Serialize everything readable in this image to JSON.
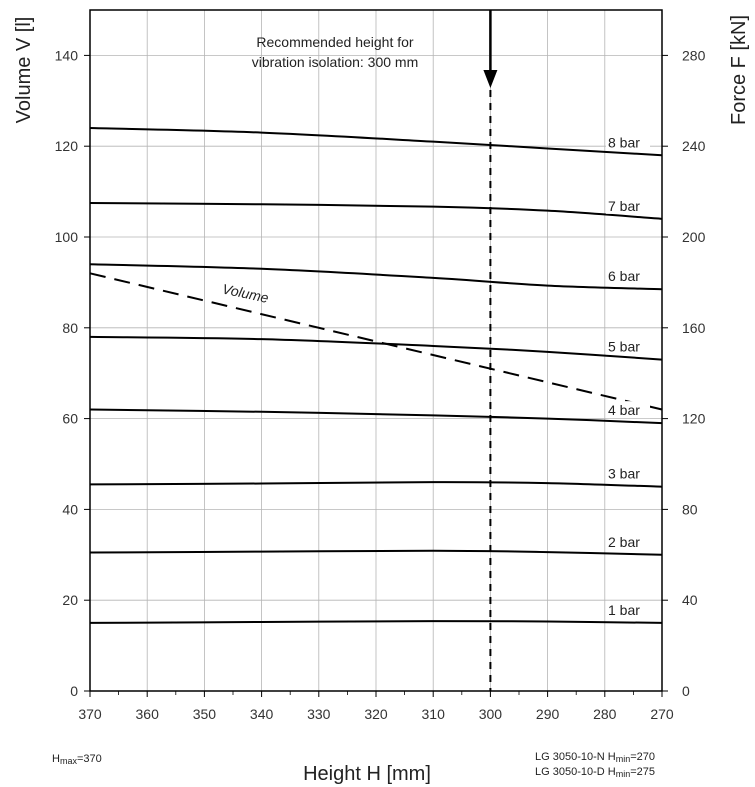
{
  "chart_data": {
    "type": "line",
    "x_label": "Height H [mm]",
    "y_label_left": "Volume V [l]",
    "y_label_right": "Force F [kN]",
    "x_range": [
      370,
      270
    ],
    "x_reversed": true,
    "x_ticks": [
      370,
      360,
      350,
      340,
      330,
      320,
      310,
      300,
      290,
      280,
      270
    ],
    "y_left_range": [
      0,
      150
    ],
    "y_left_ticks": [
      0,
      20,
      40,
      60,
      80,
      100,
      120,
      140
    ],
    "y_right_range": [
      0,
      300
    ],
    "y_right_ticks": [
      0,
      40,
      80,
      120,
      160,
      200,
      240,
      280
    ],
    "grid": true,
    "force_series": [
      {
        "name": "1 bar",
        "x": [
          370,
          340,
          310,
          290,
          270
        ],
        "y": [
          30,
          30.4,
          30.8,
          30.6,
          30
        ]
      },
      {
        "name": "2 bar",
        "x": [
          370,
          340,
          310,
          290,
          270
        ],
        "y": [
          61,
          61.4,
          61.8,
          61.2,
          60
        ]
      },
      {
        "name": "3 bar",
        "x": [
          370,
          340,
          310,
          290,
          270
        ],
        "y": [
          91,
          91.4,
          92,
          91.6,
          90
        ]
      },
      {
        "name": "4 bar",
        "x": [
          370,
          340,
          310,
          290,
          270
        ],
        "y": [
          124,
          123,
          121.4,
          120,
          118
        ]
      },
      {
        "name": "5 bar",
        "x": [
          370,
          340,
          310,
          290,
          270
        ],
        "y": [
          156,
          155,
          152,
          149.4,
          146
        ]
      },
      {
        "name": "6 bar",
        "x": [
          370,
          340,
          310,
          290,
          270
        ],
        "y": [
          188,
          186,
          182,
          178.6,
          177
        ]
      },
      {
        "name": "7 bar",
        "x": [
          370,
          340,
          310,
          290,
          270
        ],
        "y": [
          215,
          214.4,
          213.4,
          211.6,
          208
        ]
      },
      {
        "name": "8 bar",
        "x": [
          370,
          340,
          310,
          290,
          270
        ],
        "y": [
          248,
          246,
          242,
          239,
          236
        ]
      }
    ],
    "volume_series": {
      "name": "Volume",
      "x": [
        370,
        270
      ],
      "y": [
        92,
        62
      ],
      "style": "dashed"
    },
    "annotation": {
      "text_line1": "Recommended height for",
      "text_line2": "vibration isolation: 300 mm",
      "x": 300
    },
    "footnotes": {
      "hmax_prefix": "H",
      "hmax_sub": "max",
      "hmax_value": "=370",
      "n_prefix": "LG 3050-10-N  H",
      "n_sub": "min",
      "n_value": "=270",
      "d_prefix": "LG 3050-10-D  H",
      "d_sub": "min",
      "d_value": "=275"
    }
  }
}
